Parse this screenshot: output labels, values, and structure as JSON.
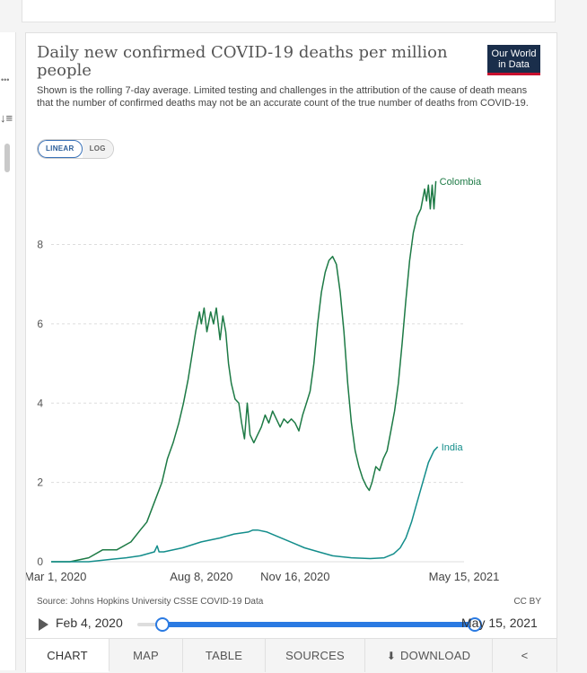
{
  "page": {
    "title": "Daily new confirmed COVID-19 deaths per million people",
    "subtitle": "Shown is the rolling 7-day average. Limited testing and challenges in the attribution of the cause of death means that the number of confirmed deaths may not be an accurate count of the true number of deaths from COVID-19.",
    "logo_line1": "Our World",
    "logo_line2": "in Data",
    "scale_linear": "LINEAR",
    "scale_log": "LOG",
    "source": "Source: Johns Hopkins University CSSE COVID-19 Data",
    "license": "CC BY",
    "timeline": {
      "start": "Feb 4, 2020",
      "end": "May 15, 2021",
      "selected_start_fraction": 0.055,
      "selected_end_fraction": 1.0
    },
    "tabs": [
      "CHART",
      "MAP",
      "TABLE",
      "SOURCES",
      "DOWNLOAD"
    ],
    "colors": {
      "colombia": "#1d7a45",
      "india": "#138d8b",
      "grid": "#dddddd",
      "accent": "#2a7ae2"
    },
    "icons": {
      "play": "play-icon",
      "download": "download-icon",
      "share": "share-icon"
    }
  },
  "chart_data": {
    "type": "line",
    "title": "Daily new confirmed COVID-19 deaths per million people",
    "x_start": "2020-03-01",
    "x_end": "2021-05-15",
    "x_total_days": 440,
    "xticks": [
      {
        "label": "Mar 1, 2020",
        "day": 0
      },
      {
        "label": "Aug 8, 2020",
        "day": 160
      },
      {
        "label": "Nov 16, 2020",
        "day": 260
      },
      {
        "label": "May 15, 2021",
        "day": 440
      }
    ],
    "yticks": [
      0,
      2,
      4,
      6,
      8
    ],
    "ylim": [
      0,
      9.8
    ],
    "grid": true,
    "series": [
      {
        "name": "Colombia",
        "points": [
          [
            0,
            0
          ],
          [
            20,
            0
          ],
          [
            40,
            0.1
          ],
          [
            55,
            0.3
          ],
          [
            70,
            0.3
          ],
          [
            85,
            0.5
          ],
          [
            95,
            0.8
          ],
          [
            102,
            1
          ],
          [
            110,
            1.5
          ],
          [
            118,
            2
          ],
          [
            124,
            2.6
          ],
          [
            130,
            3
          ],
          [
            136,
            3.5
          ],
          [
            141,
            4
          ],
          [
            146,
            4.6
          ],
          [
            150,
            5.2
          ],
          [
            154,
            5.8
          ],
          [
            158,
            6.3
          ],
          [
            160,
            6.0
          ],
          [
            163,
            6.4
          ],
          [
            166,
            5.8
          ],
          [
            170,
            6.3
          ],
          [
            173,
            6.0
          ],
          [
            176,
            6.4
          ],
          [
            180,
            5.6
          ],
          [
            183,
            6.2
          ],
          [
            186,
            5.8
          ],
          [
            189,
            5.0
          ],
          [
            192,
            4.5
          ],
          [
            196,
            4.1
          ],
          [
            200,
            4.0
          ],
          [
            203,
            3.5
          ],
          [
            206,
            3.1
          ],
          [
            209,
            4.0
          ],
          [
            212,
            3.2
          ],
          [
            216,
            3.0
          ],
          [
            220,
            3.2
          ],
          [
            224,
            3.4
          ],
          [
            228,
            3.7
          ],
          [
            232,
            3.5
          ],
          [
            236,
            3.8
          ],
          [
            240,
            3.6
          ],
          [
            244,
            3.4
          ],
          [
            248,
            3.6
          ],
          [
            252,
            3.5
          ],
          [
            256,
            3.6
          ],
          [
            260,
            3.5
          ],
          [
            264,
            3.3
          ],
          [
            268,
            3.7
          ],
          [
            272,
            4.0
          ],
          [
            276,
            4.3
          ],
          [
            280,
            5.0
          ],
          [
            284,
            6.0
          ],
          [
            288,
            6.8
          ],
          [
            292,
            7.3
          ],
          [
            296,
            7.6
          ],
          [
            300,
            7.7
          ],
          [
            304,
            7.5
          ],
          [
            308,
            6.8
          ],
          [
            312,
            5.8
          ],
          [
            316,
            4.5
          ],
          [
            320,
            3.5
          ],
          [
            324,
            2.8
          ],
          [
            328,
            2.4
          ],
          [
            332,
            2.1
          ],
          [
            336,
            1.9
          ],
          [
            339,
            1.8
          ],
          [
            342,
            2.0
          ],
          [
            346,
            2.4
          ],
          [
            350,
            2.3
          ],
          [
            354,
            2.6
          ],
          [
            358,
            2.8
          ],
          [
            362,
            3.3
          ],
          [
            366,
            3.8
          ],
          [
            370,
            4.5
          ],
          [
            374,
            5.5
          ],
          [
            378,
            6.6
          ],
          [
            382,
            7.6
          ],
          [
            386,
            8.3
          ],
          [
            390,
            8.7
          ],
          [
            394,
            8.9
          ],
          [
            398,
            9.4
          ],
          [
            400,
            9.1
          ],
          [
            402,
            9.5
          ],
          [
            404,
            8.9
          ],
          [
            406,
            9.5
          ],
          [
            408,
            8.9
          ],
          [
            410,
            9.6
          ]
        ]
      },
      {
        "name": "India",
        "points": [
          [
            0,
            0
          ],
          [
            40,
            0
          ],
          [
            60,
            0.05
          ],
          [
            80,
            0.1
          ],
          [
            95,
            0.15
          ],
          [
            110,
            0.25
          ],
          [
            113,
            0.4
          ],
          [
            115,
            0.25
          ],
          [
            120,
            0.25
          ],
          [
            140,
            0.35
          ],
          [
            160,
            0.5
          ],
          [
            180,
            0.6
          ],
          [
            195,
            0.7
          ],
          [
            210,
            0.75
          ],
          [
            215,
            0.8
          ],
          [
            220,
            0.8
          ],
          [
            230,
            0.75
          ],
          [
            240,
            0.65
          ],
          [
            250,
            0.55
          ],
          [
            260,
            0.45
          ],
          [
            270,
            0.35
          ],
          [
            285,
            0.25
          ],
          [
            300,
            0.15
          ],
          [
            320,
            0.1
          ],
          [
            340,
            0.08
          ],
          [
            355,
            0.1
          ],
          [
            365,
            0.2
          ],
          [
            372,
            0.35
          ],
          [
            378,
            0.6
          ],
          [
            384,
            1.0
          ],
          [
            390,
            1.5
          ],
          [
            396,
            2.0
          ],
          [
            402,
            2.5
          ],
          [
            408,
            2.8
          ],
          [
            412,
            2.9
          ]
        ]
      }
    ]
  }
}
